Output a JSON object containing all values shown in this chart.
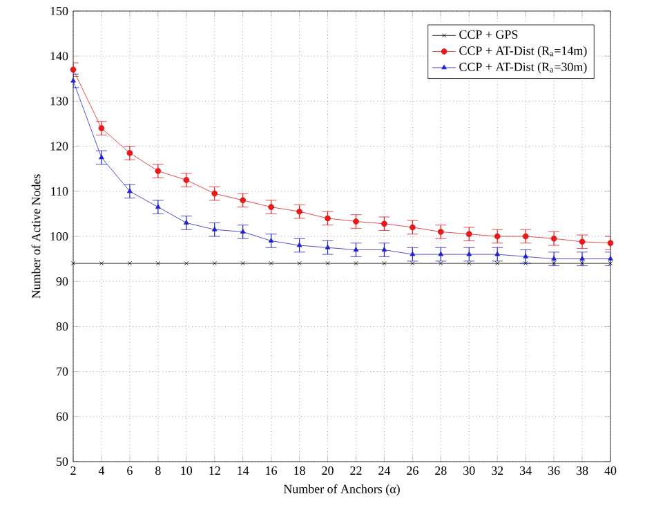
{
  "chart_data": {
    "type": "line",
    "xlabel": "Number of Anchors (α)",
    "ylabel": "Number of Active Nodes",
    "x": [
      2,
      4,
      6,
      8,
      10,
      12,
      14,
      16,
      18,
      20,
      22,
      24,
      26,
      28,
      30,
      32,
      34,
      36,
      38,
      40
    ],
    "xlim": [
      2,
      40
    ],
    "xticks": [
      2,
      4,
      6,
      8,
      10,
      12,
      14,
      16,
      18,
      20,
      22,
      24,
      26,
      28,
      30,
      32,
      34,
      36,
      38,
      40
    ],
    "ylim": [
      50,
      150
    ],
    "yticks": [
      50,
      60,
      70,
      80,
      90,
      100,
      110,
      120,
      130,
      140,
      150
    ],
    "grid": true,
    "legend": "top right",
    "series": [
      {
        "name": "CCP + GPS",
        "color": "#000000",
        "marker": "cross",
        "values": [
          94,
          94,
          94,
          94,
          94,
          94,
          94,
          94,
          94,
          94,
          94,
          94,
          94,
          94,
          94,
          94,
          94,
          94,
          94,
          94
        ]
      },
      {
        "name": "CCP + AT-Dist (R$_{a}$=14m)",
        "color": "#e41a1c",
        "marker": "circle",
        "values": [
          137,
          124,
          118.5,
          114.5,
          112.5,
          109.5,
          108,
          106.5,
          105.5,
          104,
          103.3,
          102.8,
          102,
          101,
          100.5,
          100,
          100,
          99.5,
          98.8,
          98.5
        ],
        "errors": [
          1.5,
          1.5,
          1.5,
          1.5,
          1.5,
          1.5,
          1.5,
          1.5,
          1.5,
          1.5,
          1.5,
          1.5,
          1.5,
          1.5,
          1.5,
          1.5,
          1.5,
          1.5,
          1.5,
          1.5
        ]
      },
      {
        "name": "CCP + AT-Dist (R$_{a}$=30m)",
        "color": "#2222cc",
        "marker": "triangle",
        "values": [
          134.5,
          117.5,
          110,
          106.5,
          103,
          101.5,
          101,
          99,
          98,
          97.5,
          97,
          97,
          96,
          96,
          96,
          96,
          95.5,
          95,
          95,
          95
        ],
        "errors": [
          1.5,
          1.5,
          1.5,
          1.5,
          1.5,
          1.5,
          1.5,
          1.5,
          1.5,
          1.5,
          1.5,
          1.5,
          1.5,
          1.5,
          1.5,
          1.5,
          1.5,
          1.5,
          1.5,
          1.5
        ]
      }
    ]
  }
}
